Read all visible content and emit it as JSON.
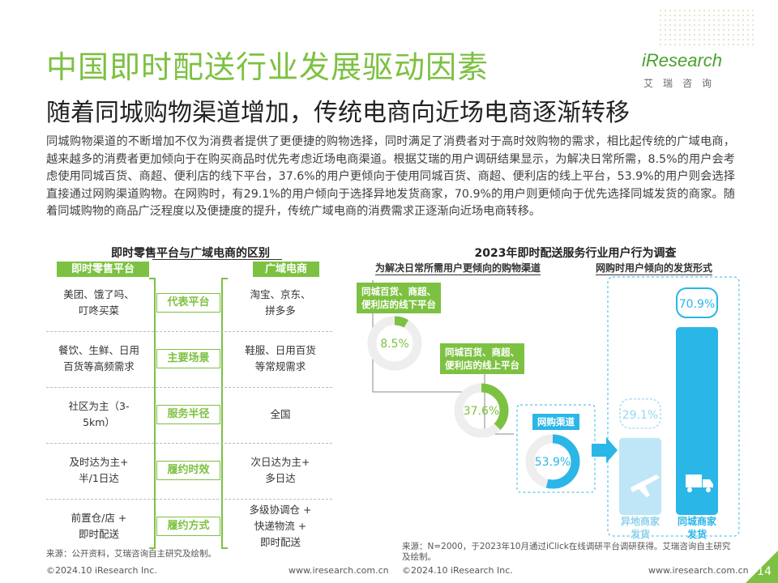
{
  "header": {
    "title": "中国即时配送行业发展驱动因素",
    "subtitle": "随着同城购物渠道增加，传统电商向近场电商逐渐转移",
    "logo_text": "iResearch",
    "logo_sub": "艾瑞咨询"
  },
  "body_text": "同城购物渠道的不断增加不仅为消费者提供了更便捷的购物选择，同时满足了消费者对于高时效购物的需求，相比起传统的广域电商，越来越多的消费者更加倾向于在购买商品时优先考虑近场电商渠道。根据艾瑞的用户调研结果显示，为解决日常所需，8.5%的用户会考虑使用同城百货、商超、便利店的线下平台，37.6%的用户更倾向于使用同城百货、商超、便利店的线上平台，53.9%的用户则会选择直接通过网购渠道购物。在网购时，有29.1%的用户倾向于选择异地发货商家，70.9%的用户则更倾向于优先选择同城发货的商家。随着同城购物的商品广泛程度以及便捷度的提升，传统广域电商的消费需求正逐渐向近场电商转移。",
  "comparison": {
    "title": "即时零售平台与广域电商的区别",
    "left_header": "即时零售平台",
    "right_header": "广域电商",
    "rows": [
      {
        "label": "代表平台",
        "left": "美团、饿了吗、\n叮咚买菜",
        "right": "淘宝、京东、\n拼多多"
      },
      {
        "label": "主要场景",
        "left": "餐饮、生鲜、日用\n百货等高频需求",
        "right": "鞋服、日用百货\n等常规需求"
      },
      {
        "label": "服务半径",
        "left": "社区为主（3-\n5km）",
        "right": "全国"
      },
      {
        "label": "履约时效",
        "left": "及时达为主+\n半/1日达",
        "right": "次日达为主+\n多日达"
      },
      {
        "label": "履约方式",
        "left": "前置仓/店 +\n即时配送",
        "right": "多级协调仓 +\n快递物流 +\n即时配送"
      }
    ],
    "source": "来源：公开资料，艾瑞咨询自主研究及绘制。"
  },
  "survey": {
    "title": "2023年即时配送服务行业用户行为调查",
    "sub_left": "为解决日常所需用户更倾向的购物渠道",
    "sub_right": "网购时用户倾向的发货形式",
    "source": "来源：N=2000，于2023年10月通过iClick在线调研平台调研获得。艾瑞咨询自主研究及绘制。"
  },
  "chart_data": [
    {
      "type": "donut",
      "title": "为解决日常所需用户更倾向的购物渠道",
      "categories": [
        "同城百货、商超、便利店的线下平台",
        "同城百货、商超、便利店的线上平台",
        "网购渠道"
      ],
      "values": [
        8.5,
        37.6,
        53.9
      ],
      "labels": [
        "8.5%",
        "37.6%",
        "53.9%"
      ],
      "unit": "%"
    },
    {
      "type": "bar",
      "title": "网购时用户倾向的发货形式",
      "categories": [
        "异地商家发货",
        "同城商家发货"
      ],
      "values": [
        29.1,
        70.9
      ],
      "labels": [
        "29.1%",
        "70.9%"
      ],
      "unit": "%"
    }
  ],
  "footer": {
    "left_copyright": "©2024.10 iResearch Inc.",
    "left_url": "www.iresearch.com.cn",
    "right_copyright": "©2024.10 iResearch Inc.",
    "right_url": "www.iresearch.com.cn",
    "page": "14"
  },
  "colors": {
    "green": "#7dc142",
    "blue": "#2bb6e8",
    "light_blue": "#bfe6f6"
  }
}
